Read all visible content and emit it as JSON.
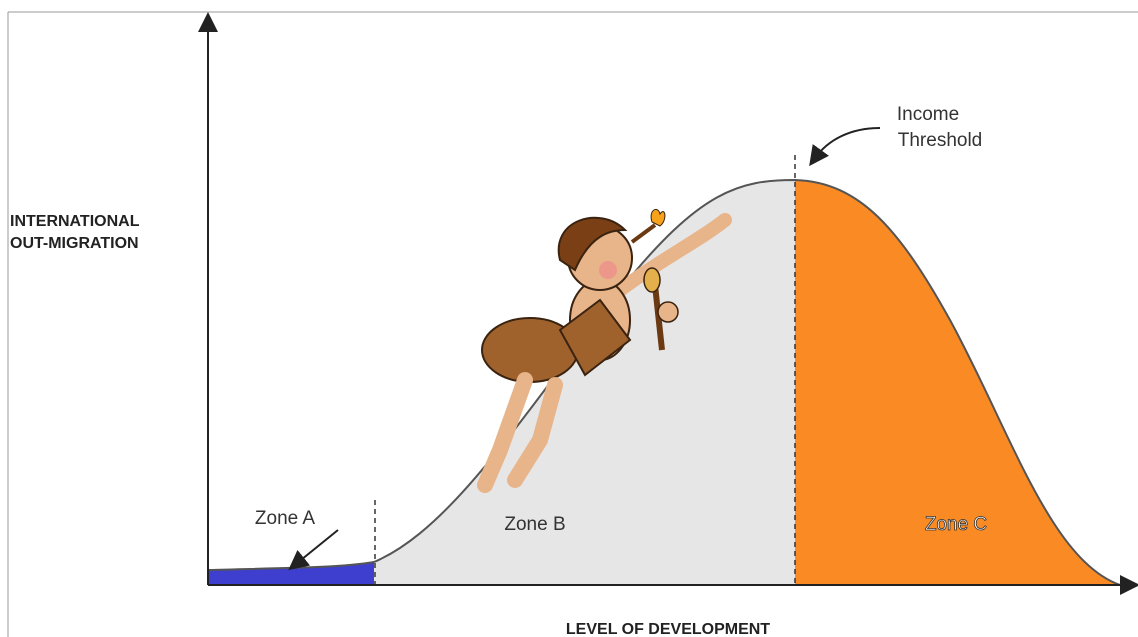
{
  "y_axis_label": [
    "INTERNATIONAL",
    "OUT-MIGRATION"
  ],
  "x_axis_label": "LEVEL OF DEVELOPMENT",
  "zones": [
    {
      "label": "Zone A"
    },
    {
      "label": "Zone B"
    },
    {
      "label": "Zone C"
    }
  ],
  "annotation": [
    "Income",
    "Threshold"
  ]
}
